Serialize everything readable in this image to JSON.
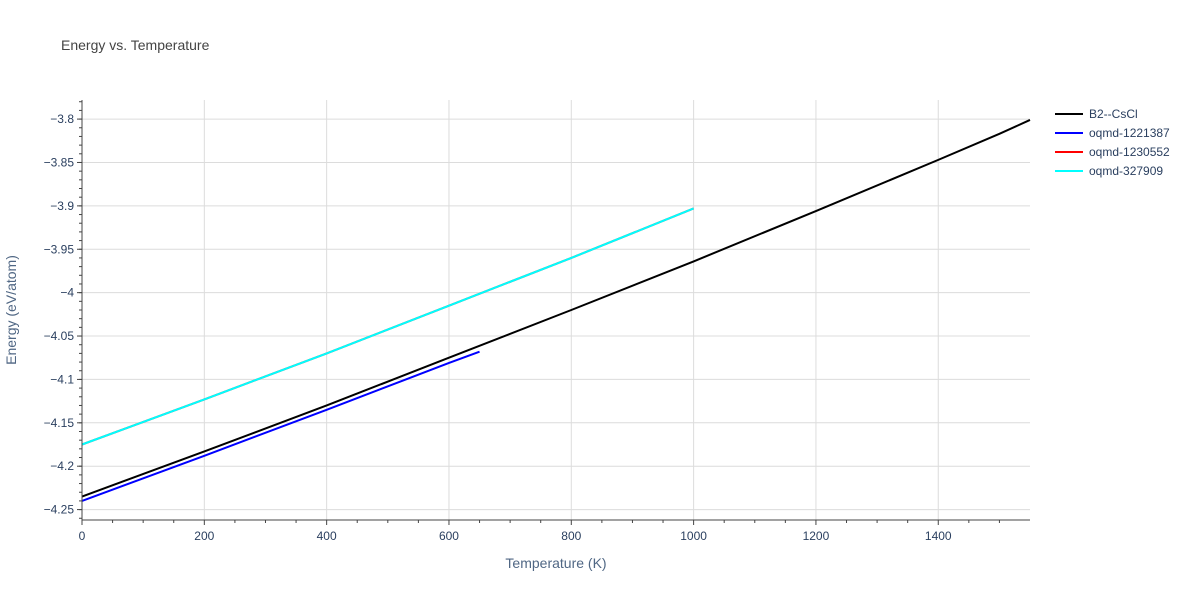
{
  "chart_data": {
    "type": "line",
    "title": "Energy vs. Temperature",
    "xlabel": "Temperature (K)",
    "ylabel": "Energy (eV/atom)",
    "xlim": [
      0,
      1550
    ],
    "ylim": [
      -4.262,
      -3.778
    ],
    "x_ticks": [
      0,
      200,
      400,
      600,
      800,
      1000,
      1200,
      1400
    ],
    "x_tick_labels": [
      "0",
      "200",
      "400",
      "600",
      "800",
      "1000",
      "1200",
      "1400"
    ],
    "y_ticks": [
      -3.8,
      -3.85,
      -3.9,
      -3.95,
      -4.0,
      -4.05,
      -4.1,
      -4.15,
      -4.2,
      -4.25
    ],
    "y_tick_labels": [
      "−3.8",
      "−3.85",
      "−3.9",
      "−3.95",
      "−4",
      "−4.05",
      "−4.1",
      "−4.15",
      "−4.2",
      "−4.25"
    ],
    "grid": true,
    "legend_position": "top-right",
    "series": [
      {
        "name": "B2--CsCl",
        "color": "#000000",
        "x": [
          0,
          200,
          400,
          600,
          800,
          1000,
          1200,
          1400,
          1500,
          1550
        ],
        "y": [
          -4.235,
          -4.183,
          -4.13,
          -4.075,
          -4.02,
          -3.964,
          -3.906,
          -3.847,
          -3.817,
          -3.801
        ]
      },
      {
        "name": "oqmd-1221387",
        "color": "#0000ff",
        "x": [
          0,
          200,
          400,
          600,
          650
        ],
        "y": [
          -4.24,
          -4.188,
          -4.135,
          -4.081,
          -4.068
        ]
      },
      {
        "name": "oqmd-1230552",
        "color": "#ff0000",
        "x": [
          0,
          200,
          400,
          600,
          800,
          1000
        ],
        "y": [
          -4.175,
          -4.123,
          -4.07,
          -4.015,
          -3.96,
          -3.903
        ]
      },
      {
        "name": "oqmd-327909",
        "color": "#00ffff",
        "x": [
          0,
          200,
          400,
          600,
          800,
          1000
        ],
        "y": [
          -4.175,
          -4.123,
          -4.07,
          -4.015,
          -3.96,
          -3.903
        ]
      }
    ]
  }
}
